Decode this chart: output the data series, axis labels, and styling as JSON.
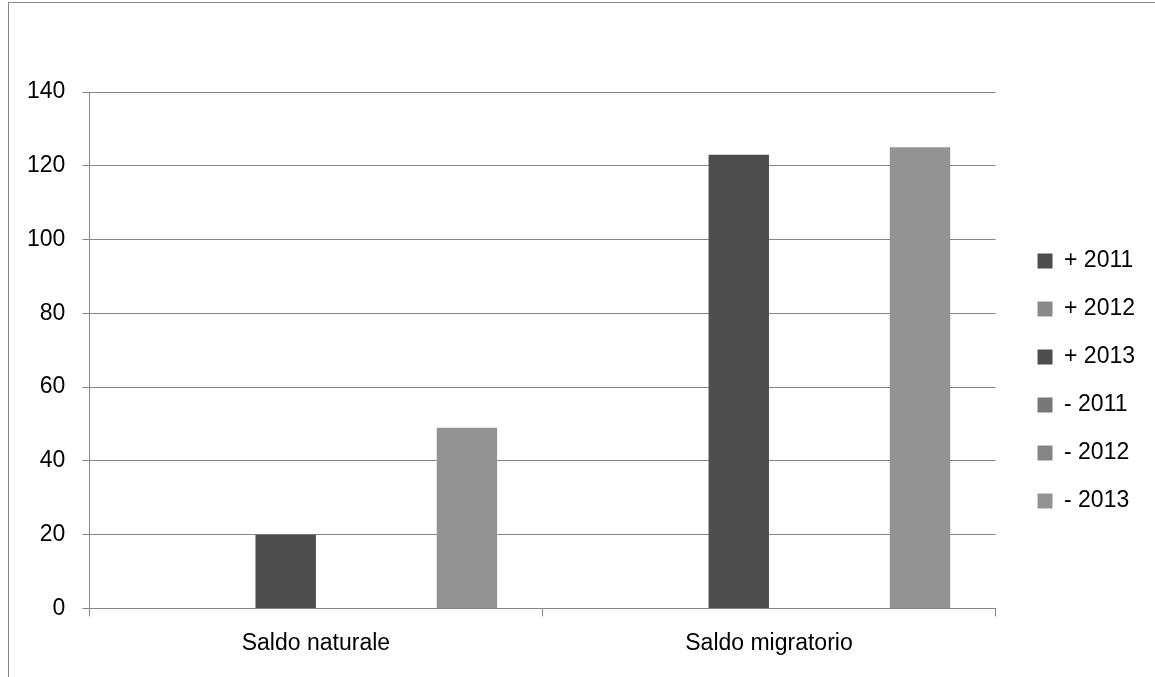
{
  "chart_data": {
    "type": "bar",
    "categories": [
      "Saldo naturale",
      "Saldo migratorio"
    ],
    "series": [
      {
        "name": "+ 2011",
        "color": "#4d4d4d",
        "values": [
          null,
          null
        ]
      },
      {
        "name": "+ 2012",
        "color": "#8a8a8a",
        "values": [
          null,
          null
        ]
      },
      {
        "name": "+ 2013",
        "color": "#4d4d4d",
        "values": [
          20,
          123
        ]
      },
      {
        "name": "- 2011",
        "color": "#777777",
        "values": [
          null,
          null
        ]
      },
      {
        "name": "- 2012",
        "color": "#858585",
        "values": [
          null,
          null
        ]
      },
      {
        "name": "- 2013",
        "color": "#939393",
        "values": [
          49,
          125
        ]
      }
    ],
    "ylim": [
      0,
      140
    ],
    "yticks": [
      0,
      20,
      40,
      60,
      80,
      100,
      120,
      140
    ],
    "grid": "y",
    "legend": "right"
  }
}
